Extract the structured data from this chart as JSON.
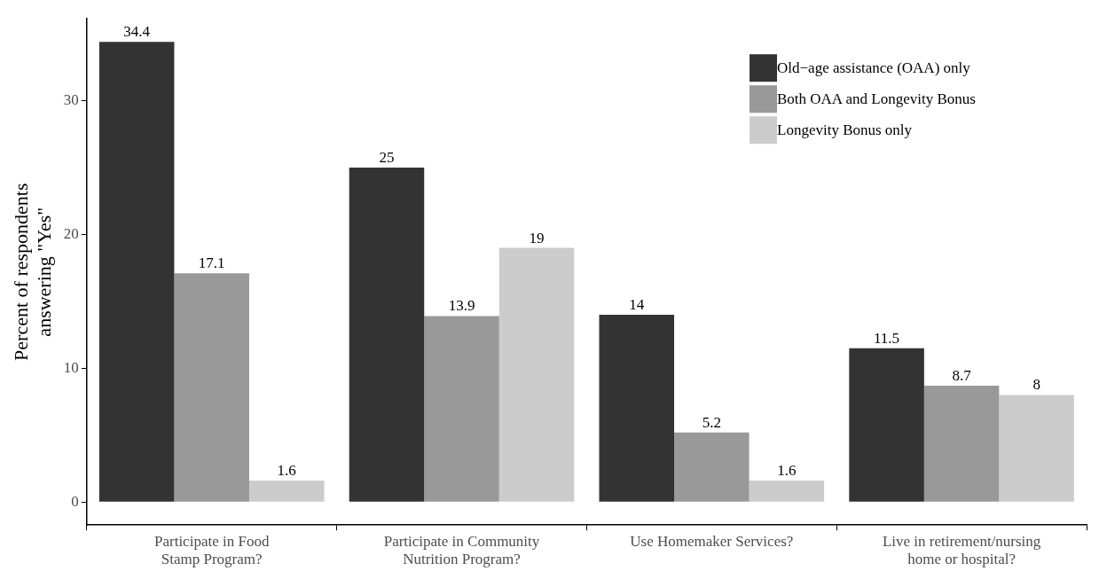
{
  "chart_data": {
    "type": "bar",
    "ylabel": "Percent of respondents\nanswering \"Yes\"",
    "categories": [
      "Participate in Food\nStamp Program?",
      "Participate in Community\nNutrition Program?",
      "Use Homemaker Services?",
      "Live in retirement/nursing\nhome or hospital?"
    ],
    "series": [
      {
        "name": "Old−age assistance (OAA) only",
        "color": "#333333",
        "values": [
          34.4,
          25,
          14,
          11.5
        ]
      },
      {
        "name": "Both OAA and Longevity Bonus",
        "color": "#999999",
        "values": [
          17.1,
          13.9,
          5.2,
          8.7
        ]
      },
      {
        "name": "Longevity Bonus only",
        "color": "#cccccc",
        "values": [
          1.6,
          19,
          1.6,
          8
        ]
      }
    ],
    "ylim": [
      -1.72,
      36.12
    ],
    "yticks": [
      0,
      10,
      20,
      30
    ],
    "grid": false,
    "legend": "top right",
    "data_labels": true
  }
}
